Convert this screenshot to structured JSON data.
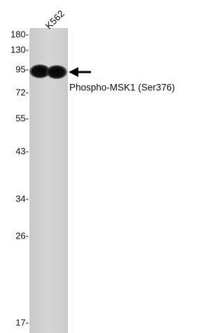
{
  "lane_label": "K562",
  "markers": [
    "180-",
    "130-",
    "95-",
    "72-",
    "55-",
    "43-",
    "34-",
    "26-",
    "17-"
  ],
  "band_label": "Phospho-MSK1 (Ser376)"
}
